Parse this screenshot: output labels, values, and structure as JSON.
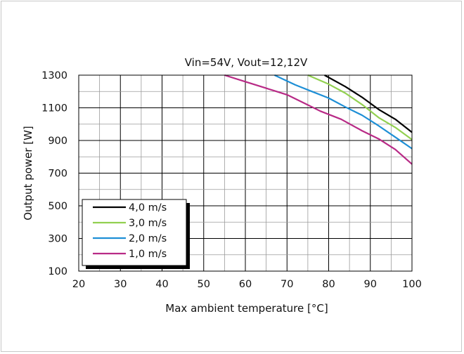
{
  "chart_data": {
    "type": "line",
    "title": "Vin=54V, Vout=12,12V",
    "xlabel": "Max ambient temperature [°C]",
    "ylabel": "Output power [W]",
    "xlim": [
      20,
      100
    ],
    "ylim": [
      100,
      1300
    ],
    "xticks": [
      20,
      30,
      40,
      50,
      60,
      70,
      80,
      90,
      100
    ],
    "yticks": [
      100,
      300,
      500,
      700,
      900,
      1100,
      1300
    ],
    "x_minor_step": 5,
    "y_minor_step": 100,
    "grid": true,
    "legend_position": "bottom-left",
    "series": [
      {
        "name": "4,0 m/s",
        "color": "#000000",
        "points": [
          [
            79,
            1300
          ],
          [
            84,
            1230
          ],
          [
            88,
            1165
          ],
          [
            92,
            1090
          ],
          [
            96,
            1030
          ],
          [
            100,
            950
          ]
        ]
      },
      {
        "name": "3,0 m/s",
        "color": "#92d050",
        "points": [
          [
            75,
            1300
          ],
          [
            80,
            1245
          ],
          [
            84,
            1190
          ],
          [
            88,
            1120
          ],
          [
            92,
            1040
          ],
          [
            96,
            980
          ],
          [
            100,
            905
          ]
        ]
      },
      {
        "name": "2,0 m/s",
        "color": "#1e8fd6",
        "points": [
          [
            67,
            1300
          ],
          [
            72,
            1240
          ],
          [
            76,
            1200
          ],
          [
            80,
            1160
          ],
          [
            84,
            1105
          ],
          [
            88,
            1055
          ],
          [
            92,
            990
          ],
          [
            96,
            920
          ],
          [
            100,
            850
          ]
        ]
      },
      {
        "name": "1,0 m/s",
        "color": "#b82a86",
        "points": [
          [
            55,
            1300
          ],
          [
            60,
            1260
          ],
          [
            65,
            1220
          ],
          [
            70,
            1180
          ],
          [
            74,
            1130
          ],
          [
            78,
            1080
          ],
          [
            83,
            1030
          ],
          [
            88,
            960
          ],
          [
            92,
            910
          ],
          [
            96,
            845
          ],
          [
            100,
            755
          ]
        ]
      }
    ]
  }
}
